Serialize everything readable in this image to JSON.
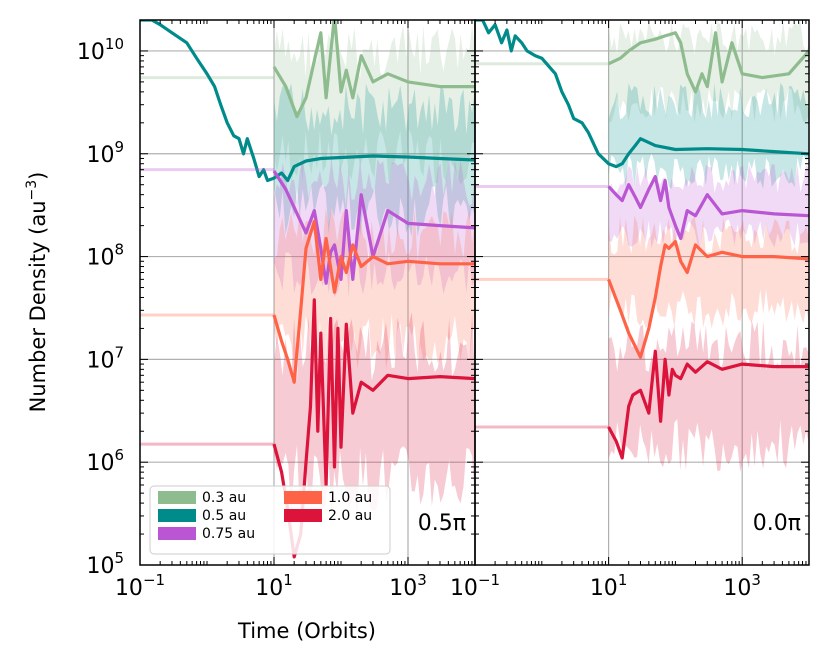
{
  "chart_data": {
    "type": "line",
    "xlabel": "Time (Orbits)",
    "ylabel": "Number Density (au",
    "ylabel_sup": "−3",
    "ylabel_close": ")",
    "x_scale": "log",
    "y_scale": "log",
    "xlim": [
      0.1,
      10000
    ],
    "ylim": [
      100000,
      20000000000
    ],
    "grid": true,
    "x_ticks": [
      {
        "value": 0.1,
        "base": "10",
        "exp": "−1"
      },
      {
        "value": 10,
        "base": "10",
        "exp": "1"
      },
      {
        "value": 1000,
        "base": "10",
        "exp": "3"
      }
    ],
    "y_ticks": [
      {
        "value": 100000,
        "base": "10",
        "exp": "5"
      },
      {
        "value": 1000000,
        "base": "10",
        "exp": "6"
      },
      {
        "value": 10000000,
        "base": "10",
        "exp": "7"
      },
      {
        "value": 100000000,
        "base": "10",
        "exp": "8"
      },
      {
        "value": 1000000000,
        "base": "10",
        "exp": "9"
      },
      {
        "value": 10000000000,
        "base": "10",
        "exp": "10"
      }
    ],
    "legend": {
      "placement": "lower-left",
      "entries": [
        {
          "label": "0.3 au",
          "color": "#8fbc8f"
        },
        {
          "label": "0.5 au",
          "color": "#008b8b"
        },
        {
          "label": "0.75 au",
          "color": "#ba55d3"
        },
        {
          "label": "1.0 au",
          "color": "#ff6347"
        },
        {
          "label": "2.0 au",
          "color": "#dc143c"
        }
      ]
    },
    "panels": [
      {
        "label": "0.5π",
        "series": [
          {
            "name": "0.3 au",
            "color": "#8fbc8f",
            "initial": 5500000000.0,
            "x": [
              10,
              15,
              22,
              30,
              40,
              50,
              60,
              80,
              100,
              120,
              150,
              200,
              300,
              500,
              1000,
              3000,
              10000
            ],
            "y": [
              7000000000.0,
              4500000000.0,
              2300000000.0,
              3500000000.0,
              8000000000.0,
              15000000000.0,
              3500000000.0,
              22000000000.0,
              4000000000.0,
              6500000000.0,
              3500000000.0,
              9000000000.0,
              5000000000.0,
              6000000000.0,
              5000000000.0,
              4500000000.0,
              4500000000.0
            ],
            "band_low": 500000000.0,
            "band_high": 18000000000.0
          },
          {
            "name": "0.5 au",
            "color": "#008b8b",
            "initial": null,
            "x": [
              0.1,
              0.15,
              0.2,
              0.3,
              0.5,
              0.7,
              1,
              1.3,
              1.6,
              2,
              2.5,
              3,
              3.5,
              4,
              5,
              6,
              7,
              8,
              10,
              13,
              16,
              20,
              30,
              50,
              100,
              300,
              1000,
              3000,
              10000
            ],
            "y": [
              20000000000.0,
              20000000000.0,
              18000000000.0,
              15000000000.0,
              12000000000.0,
              8500000000.0,
              6000000000.0,
              4500000000.0,
              3000000000.0,
              2000000000.0,
              1500000000.0,
              1400000000.0,
              1000000000.0,
              1400000000.0,
              900000000.0,
              600000000.0,
              700000000.0,
              550000000.0,
              580000000.0,
              650000000.0,
              550000000.0,
              750000000.0,
              850000000.0,
              900000000.0,
              920000000.0,
              950000000.0,
              930000000.0,
              900000000.0,
              870000000.0
            ],
            "band_low": 150000000.0,
            "band_high": 5000000000.0
          },
          {
            "name": "0.75 au",
            "color": "#ba55d3",
            "initial": 700000000.0,
            "x": [
              10,
              15,
              20,
              30,
              40,
              50,
              60,
              70,
              80,
              100,
              120,
              150,
              200,
              300,
              500,
              1000,
              3000,
              10000
            ],
            "y": [
              680000000.0,
              450000000.0,
              300000000.0,
              170000000.0,
              280000000.0,
              120000000.0,
              55000000.0,
              110000000.0,
              130000000.0,
              60000000.0,
              280000000.0,
              60000000.0,
              400000000.0,
              100000000.0,
              280000000.0,
              210000000.0,
              200000000.0,
              190000000.0
            ],
            "band_low": 40000000.0,
            "band_high": 900000000.0
          },
          {
            "name": "1.0 au",
            "color": "#ff6347",
            "initial": 27000000.0,
            "x": [
              10,
              13,
              16,
              20,
              25,
              30,
              40,
              50,
              60,
              80,
              100,
              120,
              150,
              200,
              300,
              500,
              1000,
              3000,
              10000
            ],
            "y": [
              27000000.0,
              15000000.0,
              10000000.0,
              6000000.0,
              30000000.0,
              120000000.0,
              220000000.0,
              60000000.0,
              150000000.0,
              45000000.0,
              100000000.0,
              70000000.0,
              130000000.0,
              80000000.0,
              100000000.0,
              85000000.0,
              90000000.0,
              85000000.0,
              85000000.0
            ],
            "band_low": 8000000.0,
            "band_high": 300000000.0
          },
          {
            "name": "2.0 au",
            "color": "#dc143c",
            "initial": 1500000.0,
            "x": [
              10,
              13,
              16,
              20,
              25,
              30,
              35,
              40,
              45,
              50,
              60,
              70,
              80,
              90,
              100,
              120,
              150,
              200,
              300,
              500,
              1000,
              3000,
              10000
            ],
            "y": [
              1500000.0,
              800000.0,
              350000.0,
              120000.0,
              200000.0,
              1000000.0,
              3500000.0,
              38000000.0,
              2000000.0,
              18000000.0,
              600000.0,
              25000000.0,
              900000.0,
              20000000.0,
              1400000.0,
              22000000.0,
              3000000.0,
              6000000.0,
              5000000.0,
              7000000.0,
              6500000.0,
              6800000.0,
              6500000.0
            ],
            "band_low": 300000.0,
            "band_high": 30000000.0
          }
        ]
      },
      {
        "label": "0.0π",
        "series": [
          {
            "name": "0.3 au",
            "color": "#8fbc8f",
            "initial": 7500000000.0,
            "x": [
              10,
              15,
              20,
              30,
              50,
              70,
              100,
              120,
              150,
              200,
              250,
              300,
              400,
              500,
              700,
              1000,
              2000,
              5000,
              10000
            ],
            "y": [
              7500000000.0,
              8500000000.0,
              10000000000.0,
              12000000000.0,
              13000000000.0,
              14000000000.0,
              15000000000.0,
              12000000000.0,
              6000000000.0,
              4000000000.0,
              6000000000.0,
              4500000000.0,
              15000000000.0,
              5000000000.0,
              12000000000.0,
              6000000000.0,
              5500000000.0,
              6000000000.0,
              10000000000.0
            ],
            "band_low": 2000000000.0,
            "band_high": 20000000000.0
          },
          {
            "name": "0.5 au",
            "color": "#008b8b",
            "initial": null,
            "x": [
              0.1,
              0.13,
              0.16,
              0.2,
              0.25,
              0.3,
              0.35,
              0.4,
              0.5,
              0.6,
              0.8,
              1,
              1.3,
              1.6,
              2,
              2.5,
              3,
              4,
              5,
              7,
              10,
              13,
              16,
              20,
              25,
              30,
              50,
              100,
              300,
              1000,
              3000,
              10000
            ],
            "y": [
              20000000000.0,
              20000000000.0,
              15000000000.0,
              18000000000.0,
              12000000000.0,
              16000000000.0,
              10000000000.0,
              14000000000.0,
              12000000000.0,
              10000000000.0,
              9000000000.0,
              8500000000.0,
              7000000000.0,
              6000000000.0,
              4000000000.0,
              3000000000.0,
              2200000000.0,
              2000000000.0,
              1600000000.0,
              1000000000.0,
              800000000.0,
              750000000.0,
              800000000.0,
              1000000000.0,
              1200000000.0,
              1400000000.0,
              1200000000.0,
              1100000000.0,
              1120000000.0,
              1100000000.0,
              1050000000.0,
              1000000000.0
            ],
            "band_low": 450000000.0,
            "band_high": 5000000000.0
          },
          {
            "name": "0.75 au",
            "color": "#ba55d3",
            "initial": 480000000.0,
            "x": [
              10,
              13,
              16,
              20,
              25,
              30,
              40,
              50,
              60,
              70,
              80,
              100,
              120,
              150,
              200,
              300,
              500,
              1000,
              3000,
              10000
            ],
            "y": [
              480000000.0,
              400000000.0,
              350000000.0,
              500000000.0,
              380000000.0,
              300000000.0,
              450000000.0,
              600000000.0,
              350000000.0,
              550000000.0,
              300000000.0,
              200000000.0,
              150000000.0,
              280000000.0,
              250000000.0,
              400000000.0,
              260000000.0,
              280000000.0,
              260000000.0,
              250000000.0
            ],
            "band_low": 120000000.0,
            "band_high": 800000000.0
          },
          {
            "name": "1.0 au",
            "color": "#ff6347",
            "initial": 60000000.0,
            "x": [
              10,
              15,
              20,
              30,
              40,
              50,
              60,
              70,
              80,
              100,
              120,
              150,
              200,
              300,
              500,
              1000,
              3000,
              10000
            ],
            "y": [
              60000000.0,
              30000000.0,
              18000000.0,
              10500000.0,
              20000000.0,
              40000000.0,
              80000000.0,
              130000000.0,
              120000000.0,
              140000000.0,
              90000000.0,
              70000000.0,
              130000000.0,
              100000000.0,
              110000000.0,
              100000000.0,
              100000000.0,
              95000000.0
            ],
            "band_low": 20000000.0,
            "band_high": 250000000.0
          },
          {
            "name": "2.0 au",
            "color": "#dc143c",
            "initial": 2200000.0,
            "x": [
              10,
              13,
              16,
              20,
              23,
              30,
              40,
              50,
              60,
              70,
              80,
              90,
              100,
              120,
              150,
              200,
              300,
              500,
              1000,
              3000,
              10000
            ],
            "y": [
              2200000.0,
              1600000.0,
              1100000.0,
              3500000.0,
              4500000.0,
              5000000.0,
              3000000.0,
              12000000.0,
              2500000.0,
              10000000.0,
              4500000.0,
              8000000.0,
              7000000.0,
              6500000.0,
              9000000.0,
              7500000.0,
              9500000.0,
              8000000.0,
              9000000.0,
              8500000.0,
              8500000.0
            ],
            "band_low": 800000.0,
            "band_high": 25000000.0
          }
        ]
      }
    ]
  }
}
